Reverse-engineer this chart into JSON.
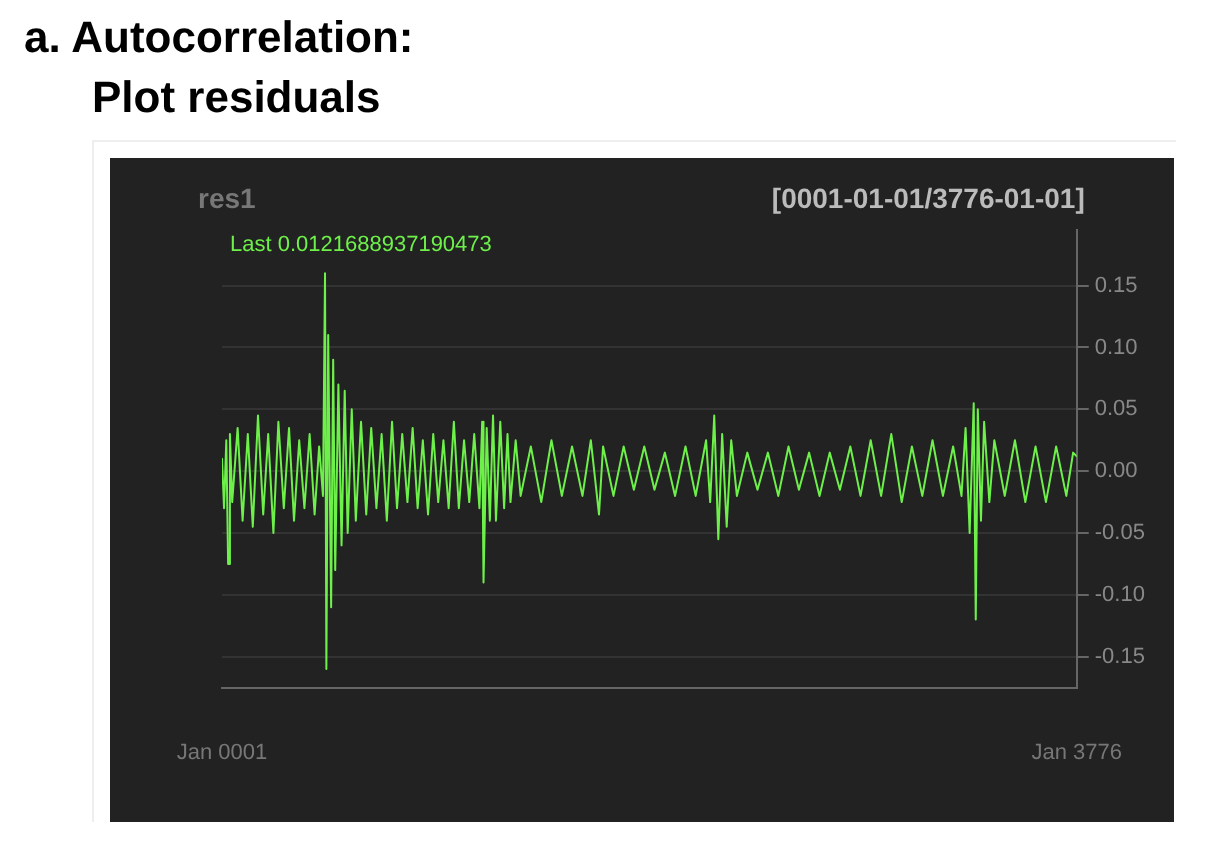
{
  "chart_data": {
    "type": "line",
    "title": "a. Autocorrelation: Plot residuals",
    "subtitle": "res1",
    "annotations": [
      "[0001-01-01/3776-01-01]",
      "Last 0.0121688937190473"
    ],
    "x": [
      "0001",
      "0010",
      "0020",
      "0028",
      "0036",
      "0046",
      "0070",
      "0092",
      "0115",
      "0137",
      "0160",
      "0183",
      "0205",
      "0228",
      "0250",
      "0274",
      "0297",
      "0319",
      "0342",
      "0365",
      "0388",
      "0410",
      "0430",
      "0447",
      "0456",
      "0462",
      "0470",
      "0483",
      "0492",
      "0501",
      "0515",
      "0529",
      "0543",
      "0556",
      "0574",
      "0592",
      "0615",
      "0638",
      "0660",
      "0683",
      "0706",
      "0729",
      "0752",
      "0774",
      "0797",
      "0820",
      "0843",
      "0865",
      "0888",
      "0911",
      "0934",
      "0956",
      "0979",
      "1002",
      "1025",
      "1047",
      "1070",
      "1093",
      "1115",
      "1138",
      "1150",
      "1156",
      "1170",
      "1184",
      "1198",
      "1211",
      "1230",
      "1247",
      "1262",
      "1275",
      "1298",
      "1320",
      "1365",
      "1411",
      "1456",
      "1502",
      "1547",
      "1593",
      "1630",
      "1666",
      "1684",
      "1730",
      "1775",
      "1820",
      "1866",
      "1911",
      "1957",
      "2002",
      "2048",
      "2093",
      "2139",
      "2157",
      "2175",
      "2193",
      "2210",
      "2230",
      "2250",
      "2275",
      "2321",
      "2366",
      "2412",
      "2458",
      "2503",
      "2549",
      "2594",
      "2640",
      "2685",
      "2730",
      "2776",
      "2821",
      "2866",
      "2912",
      "2957",
      "3003",
      "3048",
      "3094",
      "3139",
      "3185",
      "3230",
      "3267",
      "3285",
      "3303",
      "3321",
      "3330",
      "3339",
      "3353",
      "3367",
      "3390",
      "3412",
      "3458",
      "3503",
      "3549",
      "3594",
      "3640",
      "3685",
      "3730",
      "3760",
      "3776"
    ],
    "series": [
      {
        "color": "#6ef04a",
        "values": [
          0.01,
          -0.03,
          0.025,
          -0.075,
          0.03,
          -0.025,
          0.035,
          -0.04,
          0.03,
          -0.045,
          0.045,
          -0.035,
          0.03,
          -0.05,
          0.04,
          -0.03,
          0.035,
          -0.04,
          0.025,
          -0.03,
          0.03,
          -0.035,
          0.02,
          -0.02,
          0.16,
          -0.16,
          0.11,
          -0.11,
          0.09,
          -0.08,
          0.07,
          -0.06,
          0.065,
          -0.05,
          0.05,
          -0.04,
          0.04,
          -0.035,
          0.035,
          -0.03,
          0.03,
          -0.04,
          0.04,
          -0.03,
          0.03,
          -0.025,
          0.035,
          -0.03,
          0.025,
          -0.035,
          0.03,
          -0.025,
          0.025,
          -0.03,
          0.04,
          -0.03,
          0.025,
          -0.025,
          0.03,
          -0.03,
          0.04,
          -0.09,
          0.035,
          -0.04,
          0.045,
          -0.04,
          0.04,
          -0.03,
          0.03,
          -0.025,
          0.025,
          -0.02,
          0.02,
          -0.025,
          0.025,
          -0.02,
          0.02,
          -0.02,
          0.025,
          -0.035,
          0.02,
          -0.02,
          0.02,
          -0.015,
          0.02,
          -0.015,
          0.015,
          -0.02,
          0.02,
          -0.02,
          0.025,
          -0.025,
          0.045,
          -0.055,
          0.03,
          -0.045,
          0.025,
          -0.02,
          0.015,
          -0.015,
          0.015,
          -0.02,
          0.02,
          -0.015,
          0.015,
          -0.02,
          0.015,
          -0.015,
          0.02,
          -0.02,
          0.025,
          -0.02,
          0.03,
          -0.025,
          0.02,
          -0.02,
          0.025,
          -0.02,
          0.02,
          -0.02,
          0.035,
          -0.05,
          0.055,
          -0.12,
          0.05,
          -0.04,
          0.04,
          -0.025,
          0.025,
          -0.02,
          0.025,
          -0.025,
          0.02,
          -0.025,
          0.02,
          -0.02,
          0.015,
          0.012
        ]
      }
    ],
    "xlim": [
      "0001",
      "3776"
    ],
    "xticks": [
      {
        "value": "0001-01",
        "label": "Jan 0001"
      },
      {
        "value": "3776-01",
        "label": "Jan 3776"
      }
    ],
    "ylim": [
      -0.175,
      0.195
    ],
    "yticks": [
      {
        "value": -0.15,
        "label": "-0.15"
      },
      {
        "value": -0.1,
        "label": "-0.10"
      },
      {
        "value": -0.05,
        "label": "-0.05"
      },
      {
        "value": 0,
        "label": "0.00"
      },
      {
        "value": 0.05,
        "label": "0.05"
      },
      {
        "value": 0.1,
        "label": "0.10"
      },
      {
        "value": 0.15,
        "label": "0.15"
      }
    ],
    "grid": "y",
    "legend": false,
    "marker": "none",
    "line_style": "solid"
  }
}
